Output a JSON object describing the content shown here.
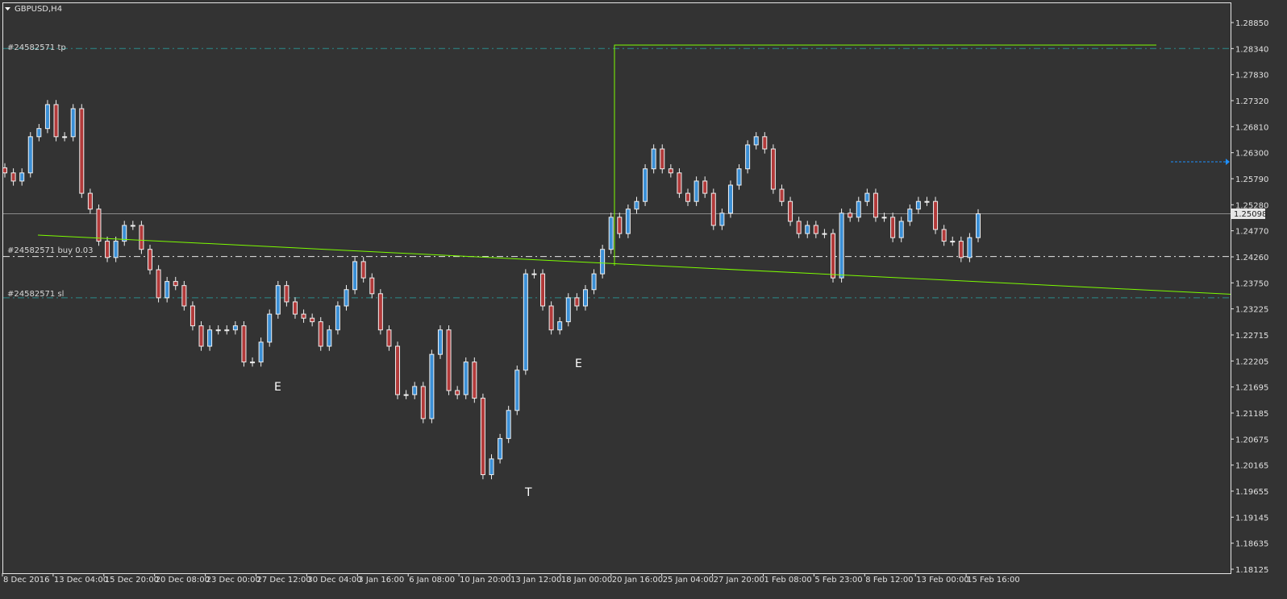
{
  "window": {
    "title": "GBPUSD,H4",
    "menu_icon": "triangle-down-icon"
  },
  "colors": {
    "background": "#333333",
    "bull_body": "#3a8fd6",
    "bear_body": "#b23a3a",
    "wick": "#f0f0f0",
    "tp_sl_line": "#2a8c8c",
    "entry_line": "#e8e8e8",
    "trendline": "#7cfc00",
    "bid_line": "#8a8a8a",
    "arrow": "#1e90ff"
  },
  "orders": {
    "tp": {
      "label": "#24582571 tp",
      "price": 1.2834
    },
    "entry": {
      "label": "#24582571 buy 0.03",
      "price": 1.2426
    },
    "sl": {
      "label": "#24582571 sl",
      "price": 1.2345
    }
  },
  "current_price": "1.25098",
  "annotations": [
    {
      "text": "E",
      "date": "28 Dec 2016"
    },
    {
      "text": "T",
      "date": "16 Jan"
    },
    {
      "text": "E",
      "date": "18 Jan"
    }
  ],
  "chart_data": {
    "type": "candlestick",
    "symbol": "GBPUSD",
    "timeframe": "H4",
    "ylim": [
      1.18125,
      1.2885
    ],
    "y_ticks": [
      "1.28850",
      "1.28340",
      "1.27830",
      "1.27320",
      "1.26810",
      "1.26300",
      "1.25790",
      "1.25280",
      "1.24770",
      "1.24260",
      "1.23750",
      "1.23225",
      "1.22715",
      "1.22205",
      "1.21695",
      "1.21185",
      "1.20675",
      "1.20165",
      "1.19655",
      "1.19145",
      "1.18635",
      "1.18125"
    ],
    "x_ticks": [
      "8 Dec 2016",
      "13 Dec 04:00",
      "15 Dec 20:00",
      "20 Dec 08:00",
      "23 Dec 00:00",
      "27 Dec 12:00",
      "30 Dec 04:00",
      "3 Jan 16:00",
      "6 Jan 08:00",
      "10 Jan 20:00",
      "13 Jan 12:00",
      "18 Jan 00:00",
      "20 Jan 16:00",
      "25 Jan 04:00",
      "27 Jan 20:00",
      "1 Feb 08:00",
      "5 Feb 23:00",
      "8 Feb 12:00",
      "13 Feb 00:00",
      "15 Feb 16:00"
    ],
    "closes": [
      1.259,
      1.2574,
      1.259,
      1.2661,
      1.2677,
      1.2724,
      1.2661,
      1.2661,
      1.2716,
      1.255,
      1.2519,
      1.2456,
      1.2424,
      1.2456,
      1.2487,
      1.2487,
      1.244,
      1.24,
      1.2345,
      1.2377,
      1.2369,
      1.2329,
      1.229,
      1.225,
      1.2282,
      1.2282,
      1.2282,
      1.229,
      1.2219,
      1.2219,
      1.2258,
      1.2313,
      1.2369,
      1.2337,
      1.2313,
      1.2305,
      1.2298,
      1.225,
      1.2282,
      1.2329,
      1.2361,
      1.2416,
      1.2384,
      1.2353,
      1.2282,
      1.225,
      1.2155,
      1.2155,
      1.2171,
      1.2108,
      1.2234,
      1.2282,
      1.2163,
      1.2155,
      1.2219,
      1.2148,
      1.1998,
      1.2029,
      1.2069,
      1.2124,
      1.2203,
      1.2392,
      1.2392,
      1.2329,
      1.2282,
      1.2298,
      1.2345,
      1.2329,
      1.2361,
      1.2392,
      1.244,
      1.2503,
      1.2471,
      1.2519,
      1.2534,
      1.2598,
      1.2637,
      1.2598,
      1.259,
      1.255,
      1.2534,
      1.2574,
      1.255,
      1.2487,
      1.2511,
      1.2566,
      1.2598,
      1.2645,
      1.2661,
      1.2637,
      1.2558,
      1.2534,
      1.2495,
      1.2471,
      1.2487,
      1.2471,
      1.2471,
      1.2384,
      1.2511,
      1.2503,
      1.2534,
      1.255,
      1.2503,
      1.2503,
      1.2463,
      1.2495,
      1.2519,
      1.2534,
      1.2534,
      1.2479,
      1.2456,
      1.2456,
      1.2424,
      1.2463,
      1.25098
    ],
    "trendline": {
      "start_price": 1.2468,
      "end_price": 1.2352
    },
    "grid": false
  }
}
